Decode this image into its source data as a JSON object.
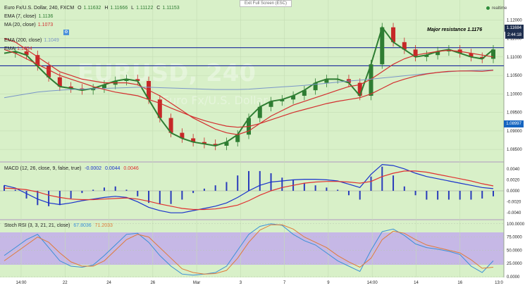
{
  "header": {
    "title": "Euro Fx/U.S. Dollar, 240, FXCM",
    "ohlc": {
      "o_label": "O",
      "o": "1.11632",
      "h_label": "H",
      "h": "1.11666",
      "l_label": "L",
      "l": "1.11122",
      "c_label": "C",
      "c": "1.11153"
    },
    "exit_fullscreen": "Exit Full Screen (ESC)",
    "realtime": "realtime"
  },
  "legends": {
    "ema7_label": "EMA (7, close)",
    "ema7_value": "1.1136",
    "ma20_label": "MA (20, close)",
    "ma20_value": "1.1073",
    "ema200_label": "EMA (200, close)",
    "ema200_value": "1.1049",
    "ema_label": "EMA",
    "ema_value": "1.1034",
    "macd_label": "MACD (12, 26, close, 9, false, true)",
    "macd_v1": "-0.0002",
    "macd_v2": "0.0044",
    "macd_v3": "0.0046",
    "rsi_label": "Stoch RSI (3, 3, 21, 21, close)",
    "rsi_v1": "67.8036",
    "rsi_v2": "71.2033"
  },
  "watermark": {
    "symbol": "EURUSD, 240",
    "name": "Euro Fx/U.S. Dollar"
  },
  "annotation": "Major resistance 1.1176",
  "price_tags": {
    "current": "1.11684",
    "timer": "2:44:18",
    "level": "1.08997"
  },
  "colors": {
    "bg": "#d8f0c8",
    "rsi_band": "#c6b8e6",
    "ema7": "#2e7d32",
    "ma20": "#d32f2f",
    "ema200": "#7a96c8",
    "up": "#2e7d32",
    "down": "#c62828",
    "hline": "#1a2a9c",
    "macd_line": "#1a33cc",
    "signal": "#e03030",
    "hist": "#2a3cbb",
    "k": "#3a8fd8",
    "d": "#e07a3a"
  },
  "chart_data": [
    {
      "type": "candlestick",
      "x_ticks": [
        "14:00",
        "22",
        "24",
        "26",
        "Mar",
        "3",
        "7",
        "9",
        "14:00",
        "14",
        "16",
        "13:0"
      ],
      "y_ticks": [
        1.12,
        1.115,
        1.11,
        1.105,
        1.1,
        1.095,
        1.09,
        1.085
      ],
      "ylim": [
        1.082,
        1.125
      ],
      "hlines": [
        1.1125,
        1.1076
      ],
      "series": [
        {
          "name": "EMA (7, close)",
          "values": [
            1.111,
            1.1115,
            1.1105,
            1.1075,
            1.1045,
            1.102,
            1.1015,
            1.101,
            1.1015,
            1.1025,
            1.1035,
            1.104,
            1.1035,
            1.0985,
            1.0935,
            1.0895,
            1.088,
            1.087,
            1.0865,
            1.086,
            1.087,
            1.089,
            1.0935,
            1.0965,
            1.098,
            1.0985,
            1.0995,
            1.101,
            1.103,
            1.104,
            1.104,
            1.103,
            1.0995,
            1.108,
            1.118,
            1.114,
            1.112,
            1.11,
            1.1105,
            1.1115,
            1.112,
            1.111,
            1.11,
            1.1095,
            1.112
          ]
        },
        {
          "name": "MA (20, close)",
          "values": [
            1.115,
            1.114,
            1.112,
            1.11,
            1.108,
            1.106,
            1.105,
            1.104,
            1.1035,
            1.103,
            1.103,
            1.103,
            1.1025,
            1.101,
            1.0995,
            1.0975,
            1.0955,
            1.0935,
            1.092,
            1.0905,
            1.0895,
            1.089,
            1.09,
            1.092,
            1.094,
            1.0955,
            1.097,
            1.098,
            1.099,
            1.1,
            1.101,
            1.102,
            1.1025,
            1.104,
            1.106,
            1.108,
            1.1095,
            1.1105,
            1.111,
            1.1115,
            1.1118,
            1.1115,
            1.111,
            1.1105,
            1.11
          ]
        },
        {
          "name": "EMA (200, close)",
          "values": [
            1.099,
            1.0995,
            1.1,
            1.1005,
            1.1008,
            1.101,
            1.1012,
            1.1013,
            1.1014,
            1.1015,
            1.1016,
            1.1017,
            1.1018,
            1.1018,
            1.1017,
            1.1016,
            1.1015,
            1.1014,
            1.1013,
            1.1012,
            1.1012,
            1.1012,
            1.1013,
            1.1015,
            1.1017,
            1.1019,
            1.1021,
            1.1023,
            1.1026,
            1.1029,
            1.1032,
            1.1035,
            1.1037,
            1.104,
            1.1043,
            1.1046,
            1.1049,
            1.1052,
            1.1055,
            1.1058,
            1.106,
            1.1062,
            1.1063,
            1.1064,
            1.1065
          ]
        },
        {
          "name": "EMA",
          "values": [
            1.112,
            1.111,
            1.1095,
            1.108,
            1.1065,
            1.105,
            1.104,
            1.103,
            1.102,
            1.1012,
            1.1005,
            1.1,
            1.0995,
            1.0985,
            1.0975,
            1.0962,
            1.095,
            1.0938,
            1.0928,
            1.092,
            1.0913,
            1.091,
            1.0912,
            1.092,
            1.093,
            1.094,
            1.095,
            1.0958,
            1.0966,
            1.0974,
            1.098,
            1.0985,
            1.099,
            1.1,
            1.1015,
            1.103,
            1.104,
            1.1048,
            1.1054,
            1.1058,
            1.1061,
            1.1062,
            1.1062,
            1.1061,
            1.1064
          ]
        }
      ]
    },
    {
      "type": "bar+line",
      "title": "MACD (12, 26, close, 9, false, true)",
      "y_ticks": [
        0.004,
        0.002,
        0.0,
        -0.002,
        -0.004
      ],
      "ylim": [
        -0.005,
        0.005
      ],
      "series": [
        {
          "name": "MACD",
          "values": [
            0.001,
            0.0005,
            -0.0005,
            -0.0015,
            -0.0022,
            -0.0025,
            -0.0022,
            -0.0018,
            -0.0015,
            -0.0012,
            -0.001,
            -0.0012,
            -0.002,
            -0.003,
            -0.0036,
            -0.004,
            -0.004,
            -0.0036,
            -0.0032,
            -0.0028,
            -0.0022,
            -0.0012,
            0.0,
            0.001,
            0.0016,
            0.0018,
            0.002,
            0.0021,
            0.0021,
            0.002,
            0.0018,
            0.0012,
            0.0006,
            0.003,
            0.0048,
            0.0046,
            0.004,
            0.0032,
            0.0026,
            0.0022,
            0.0018,
            0.0014,
            0.001,
            0.0006,
            0.0004
          ]
        },
        {
          "name": "Signal",
          "values": [
            0.0005,
            0.0004,
            0.0002,
            -0.0002,
            -0.0008,
            -0.0012,
            -0.0015,
            -0.0016,
            -0.0016,
            -0.0015,
            -0.0014,
            -0.0013,
            -0.0015,
            -0.0019,
            -0.0024,
            -0.0028,
            -0.0032,
            -0.0034,
            -0.0034,
            -0.0033,
            -0.003,
            -0.0026,
            -0.0018,
            -0.0008,
            0.0,
            0.0006,
            0.001,
            0.0014,
            0.0016,
            0.0017,
            0.0017,
            0.0016,
            0.0014,
            0.0017,
            0.0026,
            0.0032,
            0.0036,
            0.0036,
            0.0034,
            0.003,
            0.0026,
            0.0022,
            0.0018,
            0.0013,
            0.0009
          ]
        }
      ]
    },
    {
      "type": "line",
      "title": "Stoch RSI (3, 3, 21, 21, close)",
      "y_ticks": [
        100,
        75,
        50,
        25,
        0
      ],
      "ylim": [
        0,
        105
      ],
      "band": [
        20,
        80
      ],
      "series": [
        {
          "name": "%K",
          "values": [
            40,
            55,
            70,
            80,
            55,
            30,
            20,
            18,
            22,
            40,
            60,
            80,
            82,
            65,
            40,
            20,
            5,
            3,
            5,
            8,
            20,
            50,
            80,
            95,
            100,
            97,
            80,
            68,
            60,
            45,
            30,
            20,
            10,
            50,
            85,
            90,
            78,
            62,
            55,
            52,
            48,
            42,
            20,
            8,
            30
          ]
        },
        {
          "name": "%D",
          "values": [
            30,
            45,
            60,
            75,
            65,
            45,
            28,
            20,
            20,
            30,
            50,
            70,
            80,
            75,
            55,
            35,
            15,
            8,
            5,
            6,
            12,
            35,
            65,
            88,
            98,
            98,
            90,
            75,
            65,
            55,
            40,
            28,
            18,
            35,
            70,
            86,
            82,
            70,
            60,
            55,
            50,
            45,
            32,
            16,
            18
          ]
        }
      ]
    }
  ]
}
